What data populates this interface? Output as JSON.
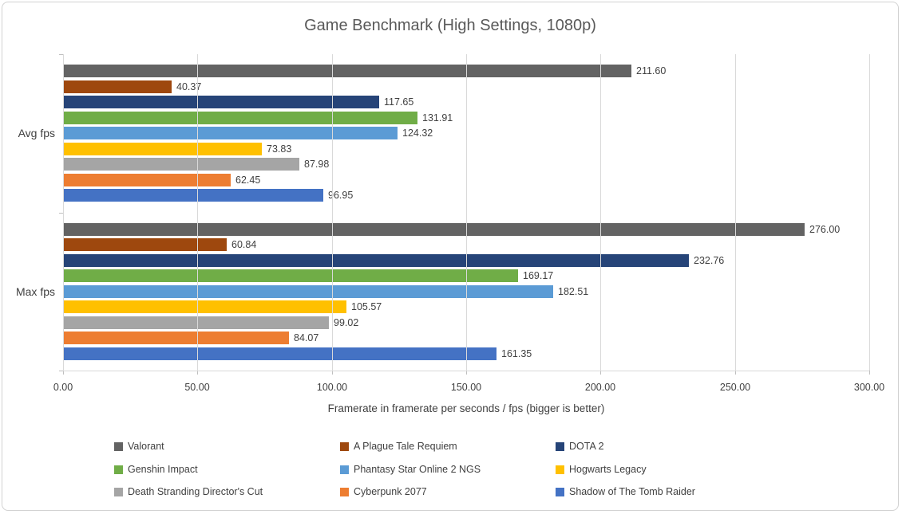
{
  "chart_data": {
    "type": "bar",
    "orientation": "horizontal",
    "title": "Game Benchmark (High Settings, 1080p)",
    "xlabel": "Framerate in framerate per seconds / fps (bigger is better)",
    "categories": [
      "Avg fps",
      "Max fps"
    ],
    "series": [
      {
        "name": "Valorant",
        "color": "#636363",
        "values": [
          211.6,
          276.0
        ]
      },
      {
        "name": "A Plague Tale Requiem",
        "color": "#9E480E",
        "values": [
          40.37,
          60.84
        ]
      },
      {
        "name": "DOTA 2",
        "color": "#264478",
        "values": [
          117.65,
          232.76
        ]
      },
      {
        "name": "Genshin Impact",
        "color": "#70AD47",
        "values": [
          131.91,
          169.17
        ]
      },
      {
        "name": "Phantasy Star Online 2 NGS",
        "color": "#5B9BD5",
        "values": [
          124.32,
          182.51
        ]
      },
      {
        "name": "Hogwarts Legacy",
        "color": "#FFC000",
        "values": [
          73.83,
          105.57
        ]
      },
      {
        "name": "Death Stranding Director's Cut",
        "color": "#A5A5A5",
        "values": [
          87.98,
          99.02
        ]
      },
      {
        "name": "Cyberpunk 2077",
        "color": "#ED7D31",
        "values": [
          62.45,
          84.07
        ]
      },
      {
        "name": "Shadow of The Tomb Raider",
        "color": "#4472C4",
        "values": [
          96.95,
          161.35
        ]
      }
    ],
    "xlim": [
      0,
      300
    ],
    "xtick_step": 50,
    "value_decimals": 2,
    "grid": true,
    "legend_position": "bottom",
    "legend_columns": 3,
    "colors": {
      "axis_line": "#D9D9D9",
      "tick": "#BFBFBF",
      "label_text": "#404040",
      "title_text": "#595959",
      "frame_border": "#D2D2D2"
    }
  }
}
